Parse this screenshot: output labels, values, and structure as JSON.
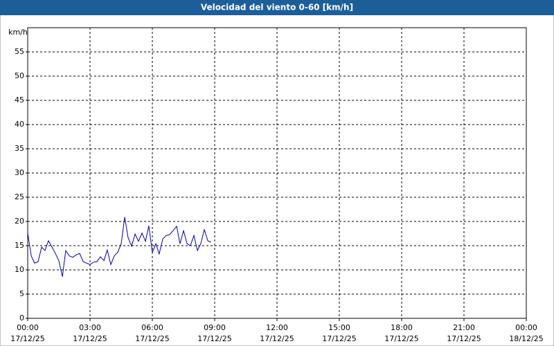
{
  "chart_data": {
    "type": "line",
    "title": "Velocidad del viento 0-60 [km/h]",
    "y_label": "km/h",
    "x": [
      0,
      0.17,
      0.33,
      0.5,
      0.67,
      0.83,
      1,
      1.17,
      1.33,
      1.5,
      1.67,
      1.83,
      2,
      2.17,
      2.33,
      2.5,
      2.67,
      2.83,
      3,
      3.17,
      3.33,
      3.5,
      3.67,
      3.83,
      4,
      4.17,
      4.33,
      4.5,
      4.67,
      4.83,
      5,
      5.17,
      5.33,
      5.5,
      5.67,
      5.83,
      6,
      6.17,
      6.33,
      6.5,
      6.67,
      6.83,
      7,
      7.17,
      7.33,
      7.5,
      7.67,
      7.83,
      8,
      8.17,
      8.33,
      8.5,
      8.67,
      8.83
    ],
    "series": [
      {
        "color": "#0000a0",
        "values": [
          17.6,
          12.9,
          11.4,
          11.7,
          14.7,
          14,
          16,
          14.7,
          13.4,
          11.9,
          8.6,
          14,
          12.9,
          12.6,
          13.1,
          13.4,
          11.7,
          11.4,
          11.1,
          11.6,
          11.7,
          12.7,
          11.9,
          14.1,
          11.1,
          12.9,
          13.6,
          15.4,
          20.9,
          16.7,
          14.9,
          17.4,
          15.9,
          17.6,
          15.9,
          19.1,
          13.6,
          15.4,
          13.3,
          16.4,
          17.1,
          17.3,
          18.1,
          19,
          15.4,
          18.1,
          15.4,
          15,
          17.1,
          14,
          15.4,
          18.3,
          16,
          15.7
        ]
      }
    ],
    "xlim": [
      0,
      24
    ],
    "xticks": [
      {
        "value": 0,
        "label": "00:00"
      },
      {
        "value": 3,
        "label": "03:00"
      },
      {
        "value": 6,
        "label": "06:00"
      },
      {
        "value": 9,
        "label": "09:00"
      },
      {
        "value": 12,
        "label": "12:00"
      },
      {
        "value": 15,
        "label": "15:00"
      },
      {
        "value": 18,
        "label": "18:00"
      },
      {
        "value": 21,
        "label": "21:00"
      },
      {
        "value": 24,
        "label": "00:00"
      }
    ],
    "xtick_dates": [
      "17/12/25",
      "17/12/25",
      "17/12/25",
      "17/12/25",
      "17/12/25",
      "17/12/25",
      "17/12/25",
      "17/12/25",
      "18/12/25"
    ],
    "ylim": [
      0,
      60
    ],
    "yticks": [
      0,
      5,
      10,
      15,
      20,
      25,
      30,
      35,
      40,
      45,
      50,
      55
    ],
    "grid": true
  }
}
